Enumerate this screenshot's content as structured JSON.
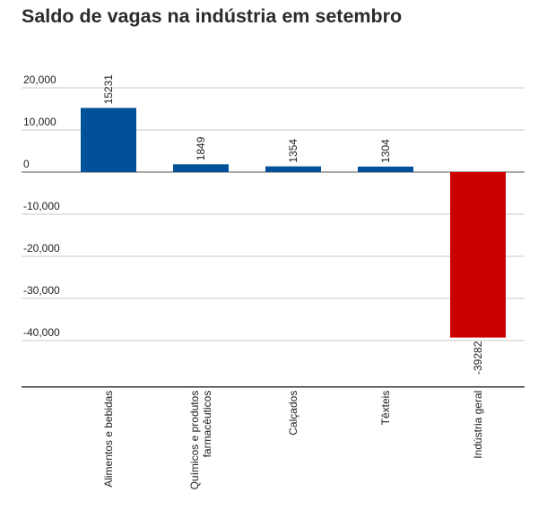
{
  "chart_data": {
    "type": "bar",
    "title": "Saldo de vagas na indústria em setembro",
    "xlabel": "",
    "ylabel": "",
    "categories": [
      "Alimentos e bebidas",
      "Químicos e produtos farmacêuticos",
      "Calçados",
      "Têxteis",
      "Indústria geral"
    ],
    "values": [
      15231,
      1849,
      1354,
      1304,
      -39282
    ],
    "data_labels": [
      "15231",
      "1849",
      "1354",
      "1304",
      "-39282"
    ],
    "ylim": [
      -51000,
      20000
    ],
    "yticks": [
      20000,
      10000,
      0,
      -10000,
      -20000,
      -30000,
      -40000
    ],
    "ytick_labels": [
      "20,000",
      "10,000",
      "0",
      "-10,000",
      "-20,000",
      "-30,000",
      "-40,000"
    ],
    "grid": true,
    "colors": {
      "positive": "#00519a",
      "negative": "#cc0000",
      "grid": "#c8c8c8",
      "axis": "#333333"
    }
  }
}
